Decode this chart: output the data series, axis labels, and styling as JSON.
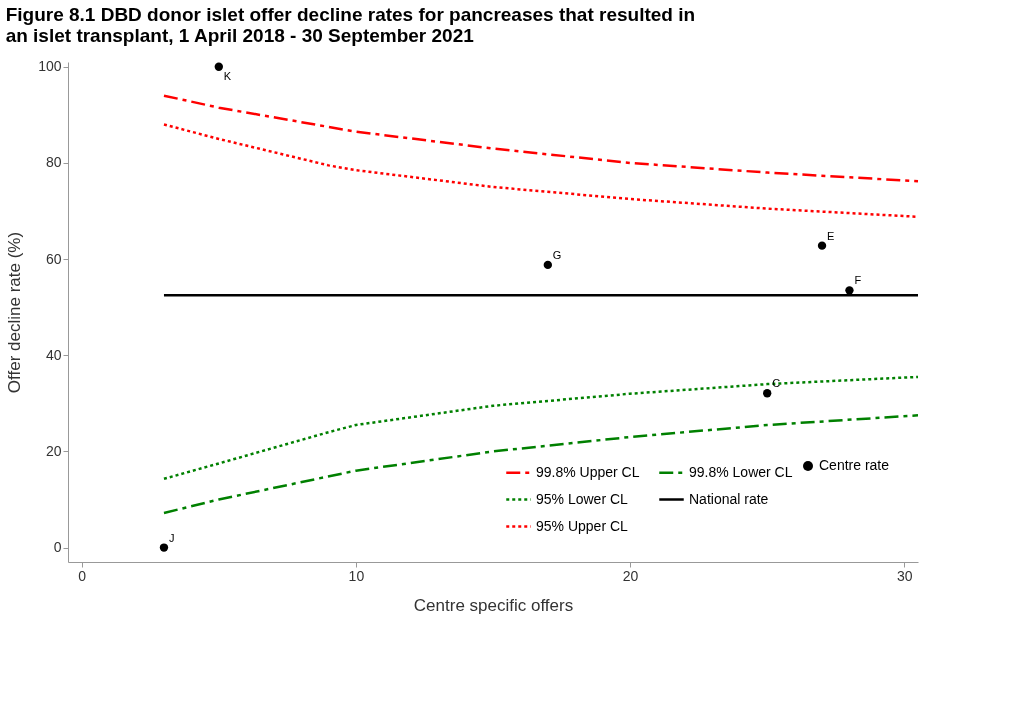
{
  "chart_data": {
    "type": "line",
    "title": "Figure 8.1 DBD donor islet offer decline rates for pancreases that resulted in an islet transplant, 1 April 2018 - 30 September 2021",
    "xlabel": "Centre specific offers",
    "ylabel": "Offer decline rate (%)",
    "xlim": [
      -0.5,
      30.5
    ],
    "xticks": [
      0,
      10,
      20,
      30
    ],
    "ylim": [
      -3,
      101
    ],
    "yticks": [
      0,
      20,
      40,
      60,
      80,
      100
    ],
    "grid": false,
    "legend": "bottom right",
    "series": [
      {
        "name": "99.8% Upper CL",
        "color": "#ff0000",
        "line_style": "dashdot",
        "x": [
          3,
          5,
          10,
          15,
          20,
          25,
          30.5
        ],
        "values": [
          94,
          91.5,
          86.5,
          83,
          80,
          78,
          76.2
        ]
      },
      {
        "name": "95% Lower CL",
        "color": "#008000",
        "line_style": "dotted",
        "x": [
          3,
          5,
          9,
          10,
          15,
          20,
          25,
          30.5
        ],
        "values": [
          14.3,
          17.5,
          24,
          25.5,
          29.5,
          32,
          34,
          35.5
        ]
      },
      {
        "name": "95% Upper CL",
        "color": "#ff0000",
        "line_style": "dotted",
        "x": [
          3,
          5,
          9,
          10,
          15,
          20,
          25,
          30.5
        ],
        "values": [
          88,
          85,
          79.5,
          78.5,
          75,
          72.5,
          70.5,
          68.8
        ]
      },
      {
        "name": "99.8% Lower CL",
        "color": "#008000",
        "line_style": "dashdot",
        "x": [
          3,
          5,
          10,
          15,
          20,
          25,
          30.5
        ],
        "values": [
          7.2,
          10,
          16,
          20,
          23,
          25.5,
          27.5
        ]
      },
      {
        "name": "National rate",
        "color": "#000000",
        "line_style": "solid",
        "x": [
          3,
          30.5
        ],
        "values": [
          52.5,
          52.5
        ]
      },
      {
        "name": "Centre rate",
        "type": "scatter",
        "marker": "circle",
        "color": "#000000",
        "x": [
          5,
          3,
          17,
          27,
          28,
          25
        ],
        "values": [
          100,
          0,
          58.8,
          62.8,
          53.5,
          32.1
        ]
      }
    ],
    "annotations": [
      {
        "text": "K",
        "x": 5,
        "y": 100
      },
      {
        "text": "J",
        "x": 3,
        "y": 0
      },
      {
        "text": "G",
        "x": 17,
        "y": 58.8
      },
      {
        "text": "E",
        "x": 27,
        "y": 62.8
      },
      {
        "text": "F",
        "x": 28,
        "y": 53.5
      },
      {
        "text": "C",
        "x": 25,
        "y": 32.1
      }
    ]
  }
}
